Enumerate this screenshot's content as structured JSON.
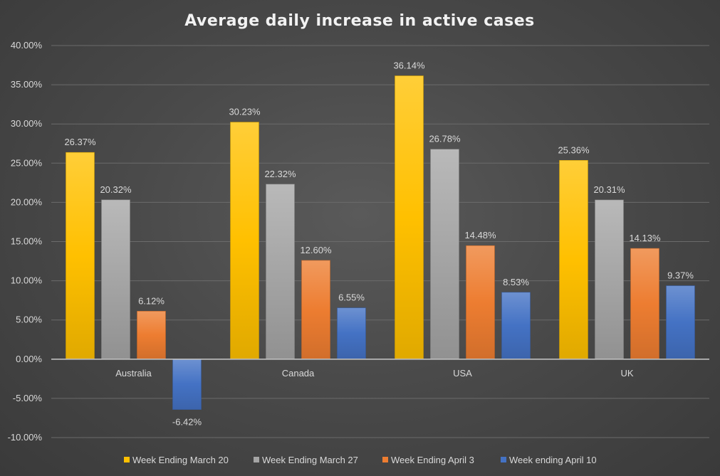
{
  "chart_data": {
    "type": "bar",
    "title": "Average daily increase in active cases",
    "categories": [
      "Australia",
      "Canada",
      "USA",
      "UK"
    ],
    "series": [
      {
        "name": "Week Ending March 20",
        "values": [
          26.37,
          30.23,
          36.14,
          25.36
        ],
        "color": "#ffc000"
      },
      {
        "name": "Week Ending March 27",
        "values": [
          20.32,
          22.32,
          26.78,
          20.31
        ],
        "color": "#a5a5a5"
      },
      {
        "name": "Week Ending April 3",
        "values": [
          6.12,
          12.6,
          14.48,
          14.13
        ],
        "color": "#ed7d31"
      },
      {
        "name": "Week ending April 10",
        "values": [
          -6.42,
          6.55,
          8.53,
          9.37
        ],
        "color": "#4472c4"
      }
    ],
    "data_labels": [
      [
        "26.37%",
        "30.23%",
        "36.14%",
        "25.36%"
      ],
      [
        "20.32%",
        "22.32%",
        "26.78%",
        "20.31%"
      ],
      [
        "6.12%",
        "12.60%",
        "14.48%",
        "14.13%"
      ],
      [
        "-6.42%",
        "6.55%",
        "8.53%",
        "9.37%"
      ]
    ],
    "yticks": [
      40,
      35,
      30,
      25,
      20,
      15,
      10,
      5,
      0,
      -5,
      -10
    ],
    "ytick_labels": [
      "40.00%",
      "35.00%",
      "30.00%",
      "25.00%",
      "20.00%",
      "15.00%",
      "10.00%",
      "5.00%",
      "0.00%",
      "-5.00%",
      "-10.00%"
    ],
    "ylim": [
      -10,
      40
    ],
    "xlabel": "",
    "ylabel": "",
    "grid": true,
    "legend_position": "bottom"
  }
}
